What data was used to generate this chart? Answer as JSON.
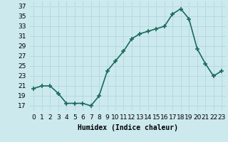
{
  "x": [
    0,
    1,
    2,
    3,
    4,
    5,
    6,
    7,
    8,
    9,
    10,
    11,
    12,
    13,
    14,
    15,
    16,
    17,
    18,
    19,
    20,
    21,
    22,
    23
  ],
  "y": [
    20.5,
    21.0,
    21.0,
    19.5,
    17.5,
    17.5,
    17.5,
    17.0,
    19.0,
    24.0,
    26.0,
    28.0,
    30.5,
    31.5,
    32.0,
    32.5,
    33.0,
    35.5,
    36.5,
    34.5,
    28.5,
    25.5,
    23.0,
    24.0
  ],
  "line_color": "#1a6b5a",
  "marker": "+",
  "markersize": 4,
  "markeredgewidth": 1.2,
  "background_color": "#cce9ee",
  "grid_color": "#b0d8de",
  "xlabel": "Humidex (Indice chaleur)",
  "xlim": [
    -0.5,
    23.5
  ],
  "ylim": [
    16,
    38
  ],
  "yticks": [
    17,
    19,
    21,
    23,
    25,
    27,
    29,
    31,
    33,
    35,
    37
  ],
  "xtick_labels": [
    "0",
    "1",
    "2",
    "3",
    "4",
    "5",
    "6",
    "7",
    "8",
    "9",
    "10",
    "11",
    "12",
    "13",
    "14",
    "15",
    "16",
    "17",
    "18",
    "19",
    "20",
    "21",
    "22",
    "23"
  ],
  "xlabel_fontsize": 7,
  "tick_fontsize": 6.5,
  "linewidth": 1.2
}
